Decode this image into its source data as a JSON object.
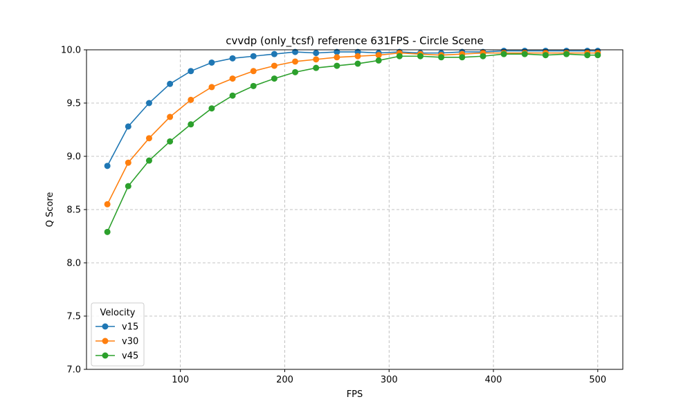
{
  "chart_data": {
    "type": "line",
    "title": "cvvdp (only_tcsf) reference 631FPS - Circle Scene",
    "xlabel": "FPS",
    "ylabel": "Q Score",
    "xlim": [
      10,
      524
    ],
    "ylim": [
      7.0,
      10.0
    ],
    "xticks": [
      100,
      200,
      300,
      400,
      500
    ],
    "yticks": [
      7.0,
      7.5,
      8.0,
      8.5,
      9.0,
      9.5,
      10.0
    ],
    "xtick_labels": [
      "100",
      "200",
      "300",
      "400",
      "500"
    ],
    "ytick_labels": [
      "7.0",
      "7.5",
      "8.0",
      "8.5",
      "9.0",
      "9.5",
      "10.0"
    ],
    "grid": true,
    "legend_title": "Velocity",
    "legend_position": "lower-left",
    "x": [
      30,
      50,
      70,
      90,
      110,
      130,
      150,
      170,
      190,
      210,
      230,
      250,
      270,
      290,
      310,
      330,
      350,
      370,
      390,
      410,
      430,
      450,
      470,
      490,
      500
    ],
    "series": [
      {
        "name": "v15",
        "color": "#1f77b4",
        "values": [
          8.91,
          9.28,
          9.5,
          9.68,
          9.8,
          9.88,
          9.92,
          9.94,
          9.96,
          9.98,
          9.97,
          9.98,
          9.98,
          9.97,
          9.98,
          9.97,
          9.97,
          9.98,
          9.98,
          9.99,
          9.99,
          9.99,
          9.99,
          9.99,
          9.99
        ]
      },
      {
        "name": "v30",
        "color": "#ff7f0e",
        "values": [
          8.55,
          8.94,
          9.17,
          9.37,
          9.53,
          9.65,
          9.73,
          9.8,
          9.85,
          9.89,
          9.91,
          9.93,
          9.94,
          9.95,
          9.97,
          9.96,
          9.95,
          9.96,
          9.97,
          9.97,
          9.97,
          9.97,
          9.97,
          9.97,
          9.97
        ]
      },
      {
        "name": "v45",
        "color": "#2ca02c",
        "values": [
          8.29,
          8.72,
          8.96,
          9.14,
          9.3,
          9.45,
          9.57,
          9.66,
          9.73,
          9.79,
          9.83,
          9.85,
          9.87,
          9.9,
          9.94,
          9.94,
          9.93,
          9.93,
          9.94,
          9.96,
          9.96,
          9.95,
          9.96,
          9.95,
          9.95
        ]
      }
    ]
  }
}
